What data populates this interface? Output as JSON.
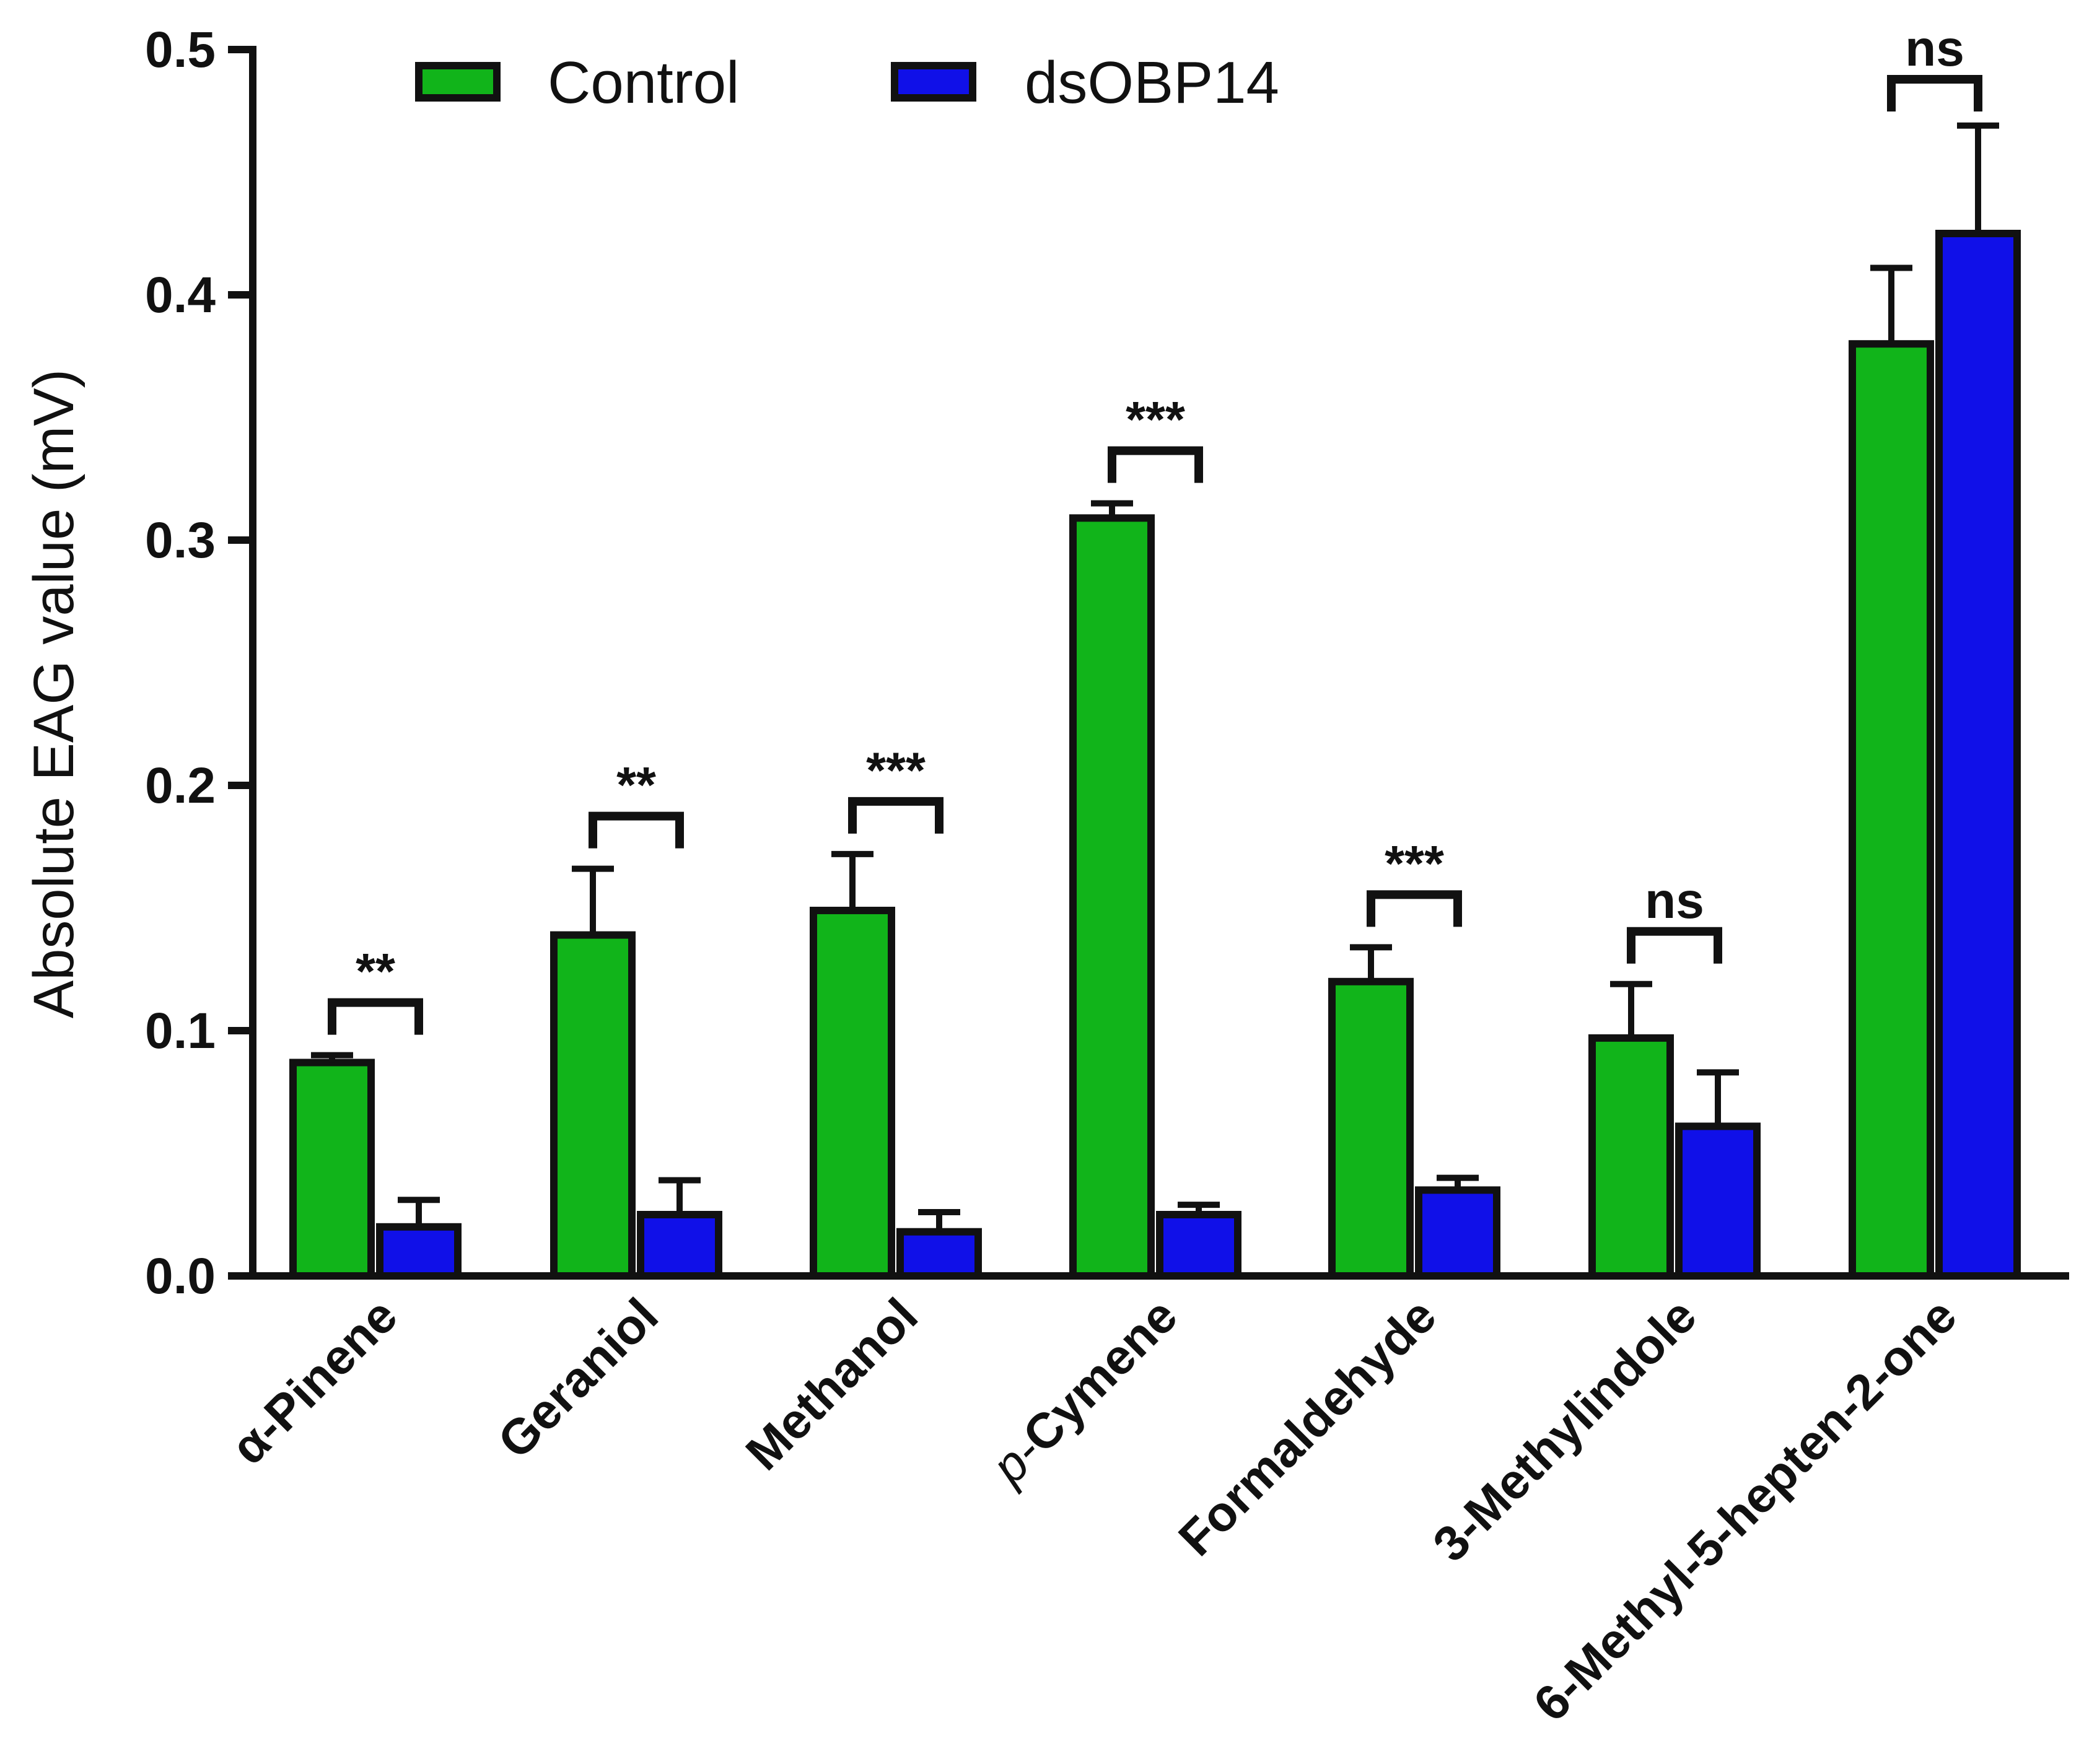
{
  "chart_data": {
    "type": "bar",
    "title": "",
    "xlabel": "",
    "ylabel": "Absolute EAG value (mV)",
    "ylim": [
      0,
      0.5
    ],
    "yticks": [
      "0.0",
      "0.1",
      "0.2",
      "0.3",
      "0.4",
      "0.5"
    ],
    "ytick_values": [
      0,
      0.1,
      0.2,
      0.3,
      0.4,
      0.5
    ],
    "categories": [
      "α-Pinene",
      "Geraniol",
      "Methanol",
      "Cymene",
      "Formaldehyde",
      "3-Methylindole",
      "6-Methyl-5-hepten-2-one"
    ],
    "category_prefixes": [
      "",
      "",
      "",
      "p-",
      "",
      "",
      ""
    ],
    "legend_position": "top-left",
    "series": [
      {
        "name": "Control",
        "color": "#11b41a",
        "values": [
          0.087,
          0.139,
          0.149,
          0.309,
          0.12,
          0.097,
          0.38
        ],
        "errors": [
          0.003,
          0.027,
          0.023,
          0.006,
          0.014,
          0.022,
          0.031
        ]
      },
      {
        "name": "dsOBP14",
        "color": "#1010e8",
        "values": [
          0.02,
          0.025,
          0.018,
          0.025,
          0.035,
          0.061,
          0.425
        ],
        "errors": [
          0.011,
          0.014,
          0.008,
          0.004,
          0.005,
          0.022,
          0.044
        ]
      }
    ],
    "significance": [
      "**",
      "**",
      "***",
      "***",
      "***",
      "ns",
      "ns"
    ]
  }
}
